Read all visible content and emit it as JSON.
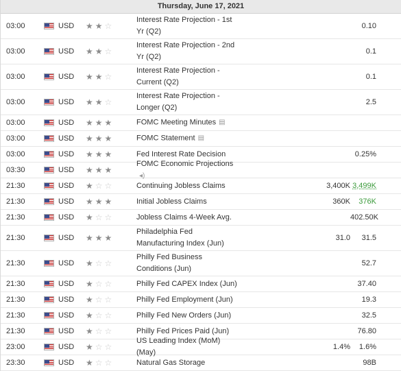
{
  "date_header": "Thursday, June 17, 2021",
  "colors": {
    "green": "#3a9a3a",
    "header_bg": "#e9e9e9"
  },
  "rows": [
    {
      "time": "03:00",
      "currency": "USD",
      "stars": 2,
      "event": "Interest Rate Projection - 1st Yr (Q2)",
      "actual": "",
      "forecast": "",
      "previous": "0.10",
      "lines": 2
    },
    {
      "time": "03:00",
      "currency": "USD",
      "stars": 2,
      "event": "Interest Rate Projection - 2nd Yr (Q2)",
      "actual": "",
      "forecast": "",
      "previous": "0.1",
      "lines": 2
    },
    {
      "time": "03:00",
      "currency": "USD",
      "stars": 2,
      "event": "Interest Rate Projection - Current (Q2)",
      "actual": "",
      "forecast": "",
      "previous": "0.1",
      "lines": 2
    },
    {
      "time": "03:00",
      "currency": "USD",
      "stars": 2,
      "event": "Interest Rate Projection - Longer (Q2)",
      "actual": "",
      "forecast": "",
      "previous": "2.5",
      "lines": 2
    },
    {
      "time": "03:00",
      "currency": "USD",
      "stars": 3,
      "event": "FOMC Meeting Minutes",
      "icon": "document-icon",
      "actual": "",
      "forecast": "",
      "previous": "",
      "lines": 1
    },
    {
      "time": "03:00",
      "currency": "USD",
      "stars": 3,
      "event": "FOMC Statement",
      "icon": "document-icon",
      "actual": "",
      "forecast": "",
      "previous": "",
      "lines": 1
    },
    {
      "time": "03:00",
      "currency": "USD",
      "stars": 3,
      "event": "Fed Interest Rate Decision",
      "actual": "",
      "forecast": "",
      "previous": "0.25%",
      "lines": 1
    },
    {
      "time": "03:30",
      "currency": "USD",
      "stars": 3,
      "event": "FOMC Economic Projections",
      "icon": "speaker-icon",
      "actual": "",
      "forecast": "",
      "previous": "",
      "lines": 1
    },
    {
      "time": "21:30",
      "currency": "USD",
      "stars": 1,
      "event": "Continuing Jobless Claims",
      "actual": "",
      "forecast": "3,400K",
      "previous": "3,499K",
      "previous_style": "green-underline",
      "lines": 1
    },
    {
      "time": "21:30",
      "currency": "USD",
      "stars": 3,
      "event": "Initial Jobless Claims",
      "actual": "",
      "forecast": "360K",
      "previous": "376K",
      "previous_style": "green",
      "lines": 1
    },
    {
      "time": "21:30",
      "currency": "USD",
      "stars": 1,
      "event": "Jobless Claims 4-Week Avg.",
      "actual": "",
      "forecast": "",
      "previous": "402.50K",
      "lines": 1
    },
    {
      "time": "21:30",
      "currency": "USD",
      "stars": 3,
      "event": "Philadelphia Fed Manufacturing Index (Jun)",
      "actual": "",
      "forecast": "31.0",
      "previous": "31.5",
      "lines": 2
    },
    {
      "time": "21:30",
      "currency": "USD",
      "stars": 1,
      "event": "Philly Fed Business Conditions (Jun)",
      "actual": "",
      "forecast": "",
      "previous": "52.7",
      "lines": 2
    },
    {
      "time": "21:30",
      "currency": "USD",
      "stars": 1,
      "event": "Philly Fed CAPEX Index (Jun)",
      "actual": "",
      "forecast": "",
      "previous": "37.40",
      "lines": 1
    },
    {
      "time": "21:30",
      "currency": "USD",
      "stars": 1,
      "event": "Philly Fed Employment (Jun)",
      "actual": "",
      "forecast": "",
      "previous": "19.3",
      "lines": 1
    },
    {
      "time": "21:30",
      "currency": "USD",
      "stars": 1,
      "event": "Philly Fed New Orders (Jun)",
      "actual": "",
      "forecast": "",
      "previous": "32.5",
      "lines": 1
    },
    {
      "time": "21:30",
      "currency": "USD",
      "stars": 1,
      "event": "Philly Fed Prices Paid (Jun)",
      "actual": "",
      "forecast": "",
      "previous": "76.80",
      "lines": 1
    },
    {
      "time": "23:00",
      "currency": "USD",
      "stars": 1,
      "event": "US Leading Index (MoM) (May)",
      "actual": "",
      "forecast": "1.4%",
      "previous": "1.6%",
      "lines": 1
    },
    {
      "time": "23:30",
      "currency": "USD",
      "stars": 1,
      "event": "Natural Gas Storage",
      "actual": "",
      "forecast": "",
      "previous": "98B",
      "lines": 1
    }
  ]
}
